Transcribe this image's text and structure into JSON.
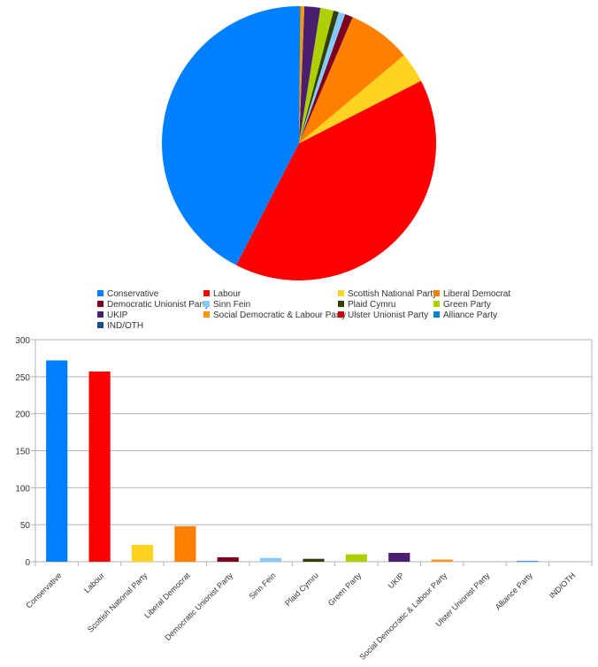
{
  "chart_data": [
    {
      "type": "pie",
      "title": "",
      "direction": "counterclockwise from top",
      "categories": [
        "Conservative",
        "Labour",
        "Scottish National Party",
        "Liberal Democrat",
        "Democratic Unionist Party",
        "Sinn Fein",
        "Plaid Cymru",
        "Green Party",
        "UKIP",
        "Social Democratic & Labour Party",
        "Ulster Unionist Party",
        "Alliance Party",
        "IND/OTH"
      ],
      "values": [
        272,
        257,
        23,
        48,
        6,
        5,
        4,
        10,
        12,
        3,
        0,
        1,
        0
      ],
      "colors": [
        "#0080ff",
        "#ff0000",
        "#ffd320",
        "#ff8000",
        "#7e0021",
        "#83caff",
        "#314004",
        "#aecf00",
        "#4b1f6f",
        "#ff950e",
        "#c5000b",
        "#0084d1",
        "#1c4a8c"
      ],
      "legend_position": "bottom"
    },
    {
      "type": "bar",
      "title": "",
      "xlabel": "",
      "ylabel": "",
      "categories": [
        "Conservative",
        "Labour",
        "Scottish National Party",
        "Liberal Democrat",
        "Democratic Unionist Party",
        "Sinn Fein",
        "Plaid Cymru",
        "Green Party",
        "UKIP",
        "Social Democratic & Labour Party",
        "Ulster Unionist Party",
        "Alliance Party",
        "IND/OTH"
      ],
      "values": [
        272,
        257,
        23,
        48,
        6,
        5,
        4,
        10,
        12,
        3,
        0,
        1,
        0
      ],
      "colors": [
        "#0080ff",
        "#ff0000",
        "#ffd320",
        "#ff8000",
        "#7e0021",
        "#83caff",
        "#314004",
        "#aecf00",
        "#4b1f6f",
        "#ff950e",
        "#c5000b",
        "#0084d1",
        "#1c4a8c"
      ],
      "ylim": [
        0,
        300
      ],
      "yticks": [
        "0",
        "50",
        "100",
        "150",
        "200",
        "250",
        "300"
      ],
      "grid": true,
      "x_label_rotation": -45
    }
  ],
  "legend": {
    "items": [
      {
        "label": "Conservative",
        "color": "#0080ff"
      },
      {
        "label": "Labour",
        "color": "#ff0000"
      },
      {
        "label": "Scottish National Party",
        "color": "#ffd320"
      },
      {
        "label": "Liberal Democrat",
        "color": "#ff8000"
      },
      {
        "label": "Democratic Unionist Party",
        "color": "#7e0021"
      },
      {
        "label": "Sinn Fein",
        "color": "#83caff"
      },
      {
        "label": "Plaid Cymru",
        "color": "#314004"
      },
      {
        "label": "Green Party",
        "color": "#aecf00"
      },
      {
        "label": "UKIP",
        "color": "#4b1f6f"
      },
      {
        "label": "Social Democratic & Labour Party",
        "color": "#ff950e"
      },
      {
        "label": "Ulster Unionist Party",
        "color": "#c5000b"
      },
      {
        "label": "Alliance Party",
        "color": "#0084d1"
      },
      {
        "label": "IND/OTH",
        "color": "#1c4a8c"
      }
    ]
  },
  "bar_axis": {
    "yticks": [
      "0",
      "50",
      "100",
      "150",
      "200",
      "250",
      "300"
    ]
  }
}
